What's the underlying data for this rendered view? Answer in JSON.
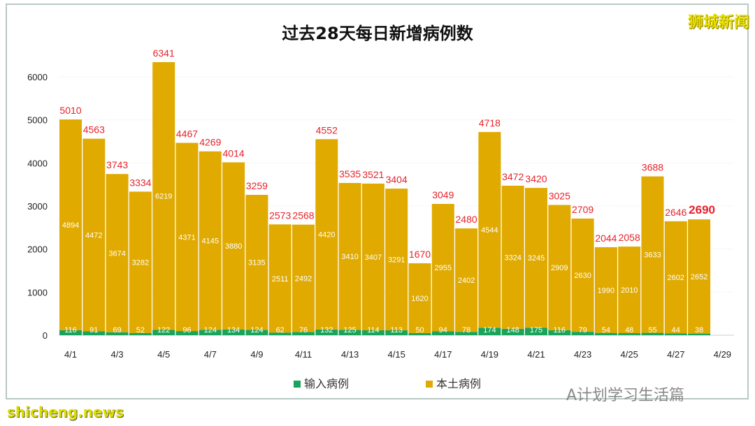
{
  "chart_data": {
    "type": "bar",
    "stacked": true,
    "title": "过去28天每日新增病例数",
    "categories": [
      "4/1",
      "4/2",
      "4/3",
      "4/4",
      "4/5",
      "4/6",
      "4/7",
      "4/8",
      "4/9",
      "4/10",
      "4/11",
      "4/12",
      "4/13",
      "4/14",
      "4/15",
      "4/16",
      "4/17",
      "4/18",
      "4/19",
      "4/20",
      "4/21",
      "4/22",
      "4/23",
      "4/24",
      "4/25",
      "4/26",
      "4/27",
      "4/28"
    ],
    "x_tick_labels": [
      "4/1",
      "4/3",
      "4/5",
      "4/7",
      "4/9",
      "4/11",
      "4/13",
      "4/15",
      "4/17",
      "4/19",
      "4/21",
      "4/23",
      "4/25",
      "4/27",
      "4/29"
    ],
    "series": [
      {
        "name": "输入病例",
        "color": "#1aa35a",
        "values": [
          116,
          91,
          69,
          52,
          122,
          96,
          124,
          134,
          124,
          62,
          76,
          132,
          125,
          114,
          113,
          50,
          94,
          78,
          174,
          148,
          175,
          116,
          79,
          54,
          48,
          55,
          44,
          38
        ]
      },
      {
        "name": "本土病例",
        "color": "#e0aa00",
        "values": [
          4894,
          4472,
          3674,
          3282,
          6219,
          4371,
          4145,
          3880,
          3135,
          2511,
          2492,
          4420,
          3410,
          3407,
          3291,
          1620,
          2955,
          2402,
          4544,
          3324,
          3245,
          2909,
          2630,
          1990,
          2010,
          3633,
          2602,
          2652
        ]
      }
    ],
    "totals": [
      5010,
      4563,
      3743,
      3334,
      6341,
      4467,
      4269,
      4014,
      3259,
      2573,
      2568,
      4552,
      3535,
      3521,
      3404,
      1670,
      3049,
      2480,
      4718,
      3472,
      3420,
      3025,
      2709,
      2044,
      2058,
      3688,
      2646,
      2690
    ],
    "ylim": [
      0,
      6500
    ],
    "y_ticks": [
      0,
      1000,
      2000,
      3000,
      4000,
      5000,
      6000
    ],
    "legend_position": "bottom",
    "xlabel": "",
    "ylabel": ""
  },
  "watermark": "狮城新闻",
  "wechat_watermark": "A计划学习生活篇",
  "source_overlay": "shicheng.news"
}
